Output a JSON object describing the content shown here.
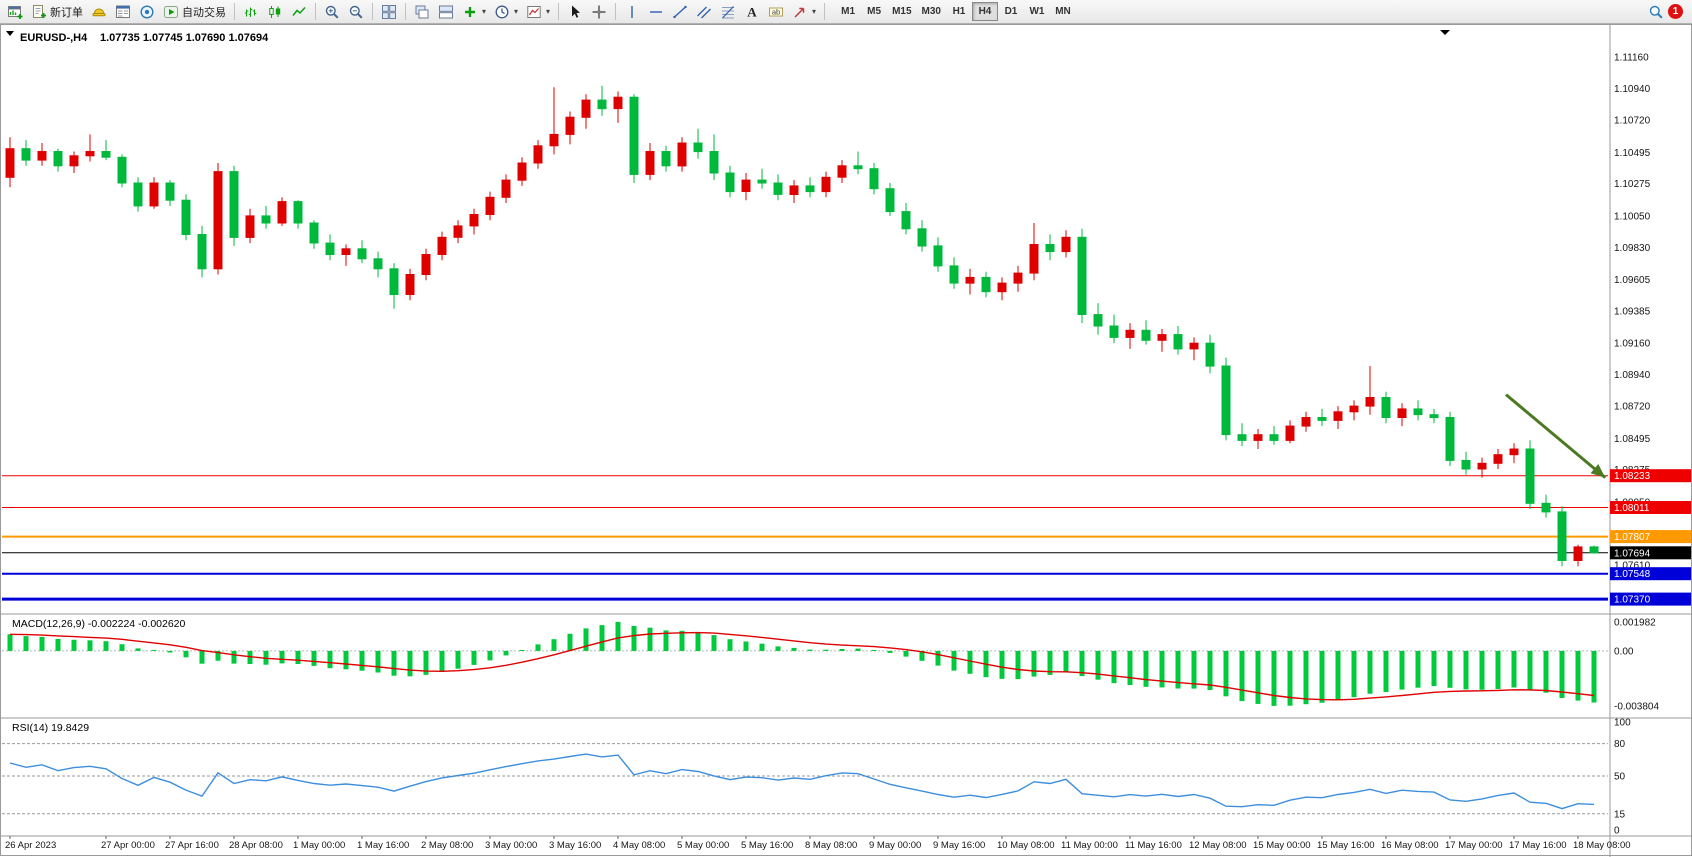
{
  "toolbar": {
    "new_order_label": "新订单",
    "autotrading_label": "自动交易",
    "timeframes": [
      "M1",
      "M5",
      "M15",
      "M30",
      "H1",
      "H4",
      "D1",
      "W1",
      "MN"
    ],
    "active_timeframe": "H4",
    "notification_badge": "1",
    "icons": [
      "new-chart-icon",
      "new-order-icon",
      "expert-advisors-icon",
      "market-watch-icon",
      "community-icon",
      "autotrading-icon",
      "bar-chart-icon",
      "candlestick-chart-icon",
      "line-chart-icon",
      "zoom-in-icon",
      "zoom-out-icon",
      "tile-windows-icon",
      "cascade-windows-icon",
      "arrange-windows-icon",
      "add-indicator-icon",
      "periods-clock-icon",
      "templates-icon",
      "cursor-icon",
      "crosshair-icon",
      "vertical-line-icon",
      "horizontal-line-icon",
      "trendline-icon",
      "channel-icon",
      "fibonacci-icon",
      "text-icon",
      "text-label-icon",
      "shapes-icon",
      "search-icon"
    ]
  },
  "chart": {
    "symbol_label": "EURUSD-,H4",
    "ohlc_text": "1.07735 1.07745 1.07690 1.07694",
    "macd_label": "MACD(12,26,9) -0.002224 -0.002620",
    "rsi_label": "RSI(14) 19.8429"
  },
  "chart_data": {
    "type": "candlestick",
    "symbol": "EURUSD-",
    "timeframe": "H4",
    "price_axis": {
      "top": 1.1128,
      "bottom": 1.0728,
      "labels": [
        "1.11160",
        "1.10940",
        "1.10720",
        "1.10495",
        "1.10275",
        "1.10050",
        "1.09830",
        "1.09605",
        "1.09385",
        "1.09160",
        "1.08940",
        "1.08720",
        "1.08495",
        "1.08275",
        "1.08050",
        "1.07830",
        "1.07610",
        "1.07390"
      ]
    },
    "candles": [
      [
        1.1032,
        1.106,
        1.1025,
        1.1052
      ],
      [
        1.1052,
        1.1058,
        1.104,
        1.1044
      ],
      [
        1.1044,
        1.1056,
        1.104,
        1.105
      ],
      [
        1.105,
        1.1052,
        1.1036,
        1.104
      ],
      [
        1.104,
        1.105,
        1.1035,
        1.1047
      ],
      [
        1.1047,
        1.1062,
        1.1043,
        1.105
      ],
      [
        1.105,
        1.1058,
        1.1044,
        1.1046
      ],
      [
        1.1046,
        1.1048,
        1.1025,
        1.1028
      ],
      [
        1.1028,
        1.1032,
        1.1008,
        1.1012
      ],
      [
        1.1012,
        1.1032,
        1.101,
        1.1028
      ],
      [
        1.1028,
        1.103,
        1.1012,
        1.1016
      ],
      [
        1.1016,
        1.102,
        1.0988,
        1.0992
      ],
      [
        1.0992,
        1.0998,
        1.0962,
        1.0968
      ],
      [
        1.0968,
        1.1042,
        1.0964,
        1.1036
      ],
      [
        1.1036,
        1.104,
        1.0984,
        1.099
      ],
      [
        1.099,
        1.101,
        1.0986,
        1.1005
      ],
      [
        1.1005,
        1.1012,
        1.0996,
        1.1
      ],
      [
        1.1,
        1.1018,
        1.0998,
        1.1015
      ],
      [
        1.1015,
        1.1016,
        1.0996,
        1.1
      ],
      [
        1.1,
        1.1002,
        1.0982,
        1.0986
      ],
      [
        1.0986,
        1.0992,
        1.0974,
        1.0978
      ],
      [
        1.0978,
        1.0985,
        1.097,
        1.0982
      ],
      [
        1.0982,
        1.0988,
        1.0972,
        1.0975
      ],
      [
        1.0975,
        1.098,
        1.0962,
        1.0968
      ],
      [
        1.0968,
        1.0972,
        1.094,
        1.095
      ],
      [
        1.095,
        1.0968,
        1.0946,
        1.0964
      ],
      [
        1.0964,
        1.0982,
        1.096,
        1.0978
      ],
      [
        1.0978,
        1.0994,
        1.0974,
        1.099
      ],
      [
        1.099,
        1.1002,
        1.0986,
        1.0998
      ],
      [
        1.0998,
        1.101,
        1.0992,
        1.1006
      ],
      [
        1.1006,
        1.1022,
        1.1002,
        1.1018
      ],
      [
        1.1018,
        1.1034,
        1.1014,
        1.103
      ],
      [
        1.103,
        1.1046,
        1.1026,
        1.1042
      ],
      [
        1.1042,
        1.1058,
        1.1038,
        1.1054
      ],
      [
        1.1054,
        1.1095,
        1.1048,
        1.1062
      ],
      [
        1.1062,
        1.1078,
        1.1055,
        1.1074
      ],
      [
        1.1074,
        1.109,
        1.1066,
        1.1086
      ],
      [
        1.1086,
        1.1096,
        1.1075,
        1.108
      ],
      [
        1.108,
        1.1092,
        1.107,
        1.1088
      ],
      [
        1.1088,
        1.109,
        1.1028,
        1.1034
      ],
      [
        1.1034,
        1.1056,
        1.103,
        1.105
      ],
      [
        1.105,
        1.1054,
        1.1036,
        1.104
      ],
      [
        1.104,
        1.106,
        1.1036,
        1.1056
      ],
      [
        1.1056,
        1.1066,
        1.1045,
        1.105
      ],
      [
        1.105,
        1.1062,
        1.103,
        1.1035
      ],
      [
        1.1035,
        1.104,
        1.1018,
        1.1022
      ],
      [
        1.1022,
        1.1035,
        1.1016,
        1.103
      ],
      [
        1.103,
        1.1038,
        1.1024,
        1.1028
      ],
      [
        1.1028,
        1.1034,
        1.1016,
        1.102
      ],
      [
        1.102,
        1.103,
        1.1014,
        1.1026
      ],
      [
        1.1026,
        1.1032,
        1.1018,
        1.1022
      ],
      [
        1.1022,
        1.1036,
        1.1018,
        1.1032
      ],
      [
        1.1032,
        1.1044,
        1.1028,
        1.104
      ],
      [
        1.104,
        1.105,
        1.1034,
        1.1038
      ],
      [
        1.1038,
        1.1042,
        1.102,
        1.1024
      ],
      [
        1.1024,
        1.1028,
        1.1005,
        1.1008
      ],
      [
        1.1008,
        1.1014,
        1.0992,
        1.0996
      ],
      [
        1.0996,
        1.1002,
        1.098,
        1.0984
      ],
      [
        1.0984,
        1.099,
        1.0966,
        1.097
      ],
      [
        1.097,
        1.0976,
        1.0954,
        1.0958
      ],
      [
        1.0958,
        1.0968,
        1.095,
        1.0962
      ],
      [
        1.0962,
        1.0966,
        1.0948,
        1.0952
      ],
      [
        1.0952,
        1.0962,
        1.0946,
        1.0958
      ],
      [
        1.0958,
        1.097,
        1.0952,
        1.0965
      ],
      [
        1.0965,
        1.1,
        1.096,
        1.0985
      ],
      [
        1.0985,
        1.0992,
        1.0974,
        1.098
      ],
      [
        1.098,
        1.0995,
        1.0976,
        1.099
      ],
      [
        1.099,
        1.0996,
        1.093,
        1.0936
      ],
      [
        1.0936,
        1.0944,
        1.0922,
        1.0928
      ],
      [
        1.0928,
        1.0936,
        1.0916,
        1.092
      ],
      [
        1.092,
        1.093,
        1.0912,
        1.0925
      ],
      [
        1.0925,
        1.0932,
        1.0915,
        1.0918
      ],
      [
        1.0918,
        1.0926,
        1.091,
        1.0922
      ],
      [
        1.0922,
        1.0928,
        1.0908,
        1.0912
      ],
      [
        1.0912,
        1.092,
        1.0904,
        1.0916
      ],
      [
        1.0916,
        1.0922,
        1.0895,
        1.09
      ],
      [
        1.09,
        1.0906,
        1.0848,
        1.0852
      ],
      [
        1.0852,
        1.086,
        1.0844,
        1.0848
      ],
      [
        1.0848,
        1.0856,
        1.0842,
        1.0852
      ],
      [
        1.0852,
        1.0858,
        1.0845,
        1.0848
      ],
      [
        1.0848,
        1.0862,
        1.0846,
        1.0858
      ],
      [
        1.0858,
        1.0868,
        1.0854,
        1.0864
      ],
      [
        1.0864,
        1.087,
        1.0858,
        1.0862
      ],
      [
        1.0862,
        1.0872,
        1.0856,
        1.0868
      ],
      [
        1.0868,
        1.0876,
        1.0862,
        1.0872
      ],
      [
        1.0872,
        1.09,
        1.0866,
        1.0878
      ],
      [
        1.0878,
        1.0882,
        1.086,
        1.0864
      ],
      [
        1.0864,
        1.0874,
        1.0858,
        1.087
      ],
      [
        1.087,
        1.0876,
        1.0862,
        1.0866
      ],
      [
        1.0866,
        1.087,
        1.086,
        1.0864
      ],
      [
        1.0864,
        1.0868,
        1.083,
        1.0834
      ],
      [
        1.0834,
        1.084,
        1.0824,
        1.0828
      ],
      [
        1.0828,
        1.0836,
        1.0822,
        1.0832
      ],
      [
        1.0832,
        1.0842,
        1.0828,
        1.0838
      ],
      [
        1.0838,
        1.0846,
        1.0832,
        1.0842
      ],
      [
        1.0842,
        1.0848,
        1.08,
        1.0804
      ],
      [
        1.0804,
        1.081,
        1.0794,
        1.0798
      ],
      [
        1.0798,
        1.0802,
        1.076,
        1.0764
      ],
      [
        1.0764,
        1.0775,
        1.076,
        1.07735
      ],
      [
        1.07735,
        1.07745,
        1.0769,
        1.07694
      ]
    ],
    "time_labels": [
      {
        "index": 0,
        "text": "26 Apr 2023"
      },
      {
        "index": 6,
        "text": "27 Apr 00:00"
      },
      {
        "index": 10,
        "text": "27 Apr 16:00"
      },
      {
        "index": 14,
        "text": "28 Apr 08:00"
      },
      {
        "index": 18,
        "text": "1 May 00:00"
      },
      {
        "index": 22,
        "text": "1 May 16:00"
      },
      {
        "index": 26,
        "text": "2 May 08:00"
      },
      {
        "index": 30,
        "text": "3 May 00:00"
      },
      {
        "index": 34,
        "text": "3 May 16:00"
      },
      {
        "index": 38,
        "text": "4 May 08:00"
      },
      {
        "index": 42,
        "text": "5 May 00:00"
      },
      {
        "index": 46,
        "text": "5 May 16:00"
      },
      {
        "index": 50,
        "text": "8 May 08:00"
      },
      {
        "index": 54,
        "text": "9 May 00:00"
      },
      {
        "index": 58,
        "text": "9 May 16:00"
      },
      {
        "index": 62,
        "text": "10 May 08:00"
      },
      {
        "index": 66,
        "text": "11 May 00:00"
      },
      {
        "index": 70,
        "text": "11 May 16:00"
      },
      {
        "index": 74,
        "text": "12 May 08:00"
      },
      {
        "index": 78,
        "text": "15 May 00:00"
      },
      {
        "index": 82,
        "text": "15 May 16:00"
      },
      {
        "index": 86,
        "text": "16 May 08:00"
      },
      {
        "index": 90,
        "text": "17 May 00:00"
      },
      {
        "index": 94,
        "text": "17 May 16:00"
      },
      {
        "index": 98,
        "text": "18 May 08:00"
      }
    ],
    "hlines": [
      {
        "price": 1.08233,
        "label": "1.08233",
        "color": "#EE0000",
        "width": 1
      },
      {
        "price": 1.08011,
        "label": "1.08011",
        "color": "#EE0000",
        "width": 1
      },
      {
        "price": 1.07807,
        "label": "1.07807",
        "color": "#FF9900",
        "width": 2
      },
      {
        "price": 1.07548,
        "label": "1.07548",
        "color": "#0000D8",
        "width": 2
      },
      {
        "price": 1.0737,
        "label": "1.07370",
        "color": "#0000D8",
        "width": 3
      }
    ],
    "current_price": {
      "price": 1.07694,
      "label": "1.07694",
      "color": "#000000"
    },
    "arrow": {
      "from_candle": 93.5,
      "from_price": 1.088,
      "to_candle": 99.7,
      "to_price": 1.0822,
      "color": "#4C7A22"
    },
    "macd": {
      "params": "MACD(12,26,9)",
      "main_value": -0.002224,
      "signal_value": -0.00262,
      "range_top": 0.0024,
      "range_bottom": -0.0042,
      "axis_labels": [
        {
          "value": 0.001982,
          "text": "0.001982"
        },
        {
          "value": 0,
          "text": "0.00"
        },
        {
          "value": -0.003804,
          "text": "-0.003804"
        }
      ]
    },
    "rsi": {
      "period": 14,
      "value": 19.8429,
      "levels": [
        80,
        50,
        15
      ],
      "axis_labels": [
        {
          "value": 100,
          "text": "100"
        },
        {
          "value": 80,
          "text": "80"
        },
        {
          "value": 50,
          "text": "50"
        },
        {
          "value": 15,
          "text": "15"
        },
        {
          "value": 0,
          "text": "0"
        }
      ]
    },
    "colors": {
      "bull": "#DD0000",
      "bear": "#00B93C",
      "macd_bar": "#00C93C",
      "macd_signal": "#E00000",
      "rsi_line": "#3E8EDE",
      "background": "#FFFFFF",
      "panel_border": "#9A9A9A",
      "axis_text": "#151515"
    }
  }
}
